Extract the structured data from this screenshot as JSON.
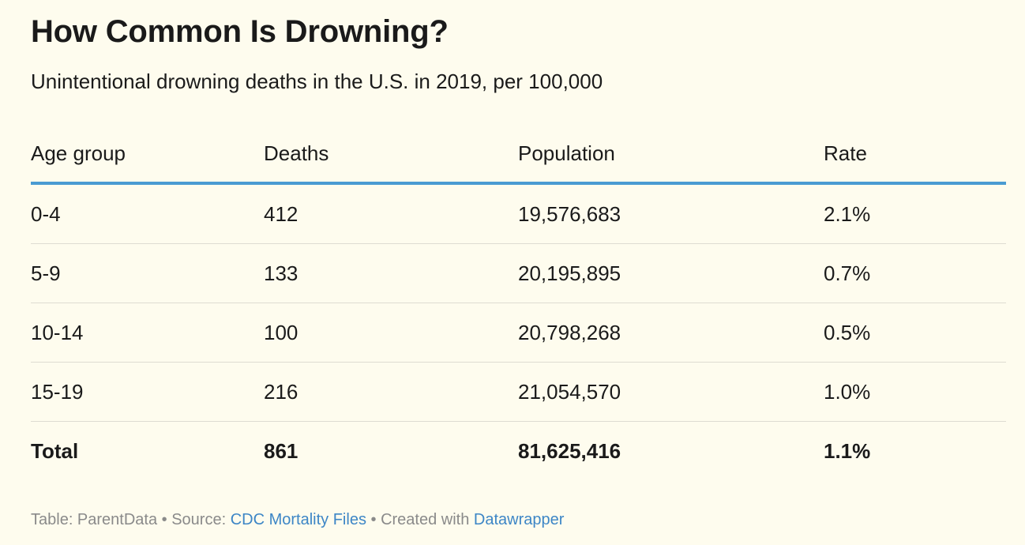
{
  "chart_data": {
    "type": "table",
    "title": "How Common Is Drowning?",
    "subtitle": "Unintentional drowning deaths in the U.S. in 2019, per 100,000",
    "columns": [
      "Age group",
      "Deaths",
      "Population",
      "Rate"
    ],
    "rows": [
      [
        "0-4",
        "412",
        "19,576,683",
        "2.1%"
      ],
      [
        "5-9",
        "133",
        "20,195,895",
        "0.7%"
      ],
      [
        "10-14",
        "100",
        "20,798,268",
        "0.5%"
      ],
      [
        "15-19",
        "216",
        "21,054,570",
        "1.0%"
      ]
    ],
    "total": [
      "Total",
      "861",
      "81,625,416",
      "1.1%"
    ]
  },
  "footer": {
    "prefix": "Table: ParentData • Source: ",
    "source_link": "CDC Mortality Files",
    "middle": " • Created with ",
    "tool_link": "Datawrapper"
  },
  "colors": {
    "background": "#fefcee",
    "header_rule": "#4a9bd2",
    "link": "#3d86c6",
    "footer_text": "#8a8a8a"
  }
}
